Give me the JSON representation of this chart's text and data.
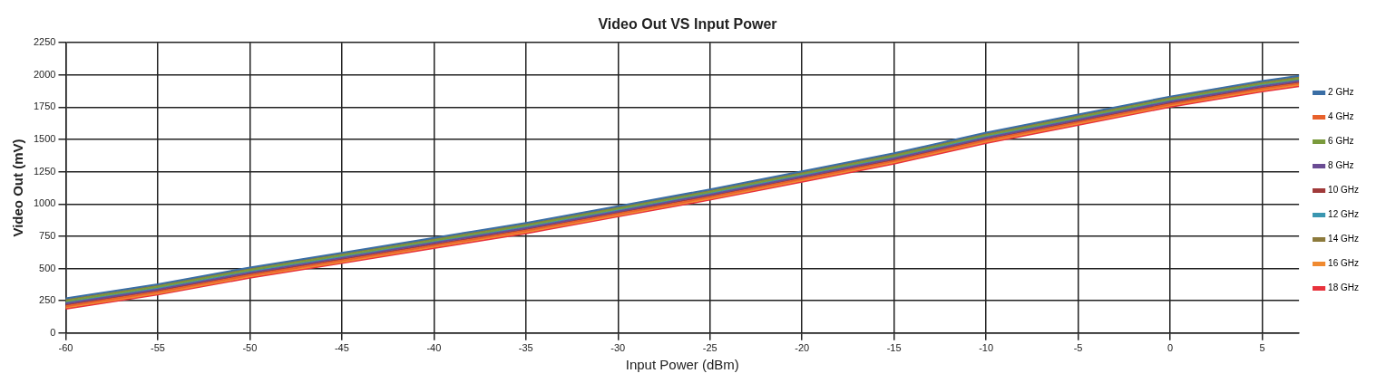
{
  "chart_data": {
    "type": "line",
    "title": "Video Out VS Input Power",
    "xlabel": "Input Power (dBm)",
    "ylabel": "Video Out (mV)",
    "x": [
      -60,
      -55,
      -50,
      -45,
      -40,
      -35,
      -30,
      -25,
      -20,
      -15,
      -10,
      -5,
      0,
      5,
      7
    ],
    "xlim": [
      -60,
      7
    ],
    "xticks": [
      -60,
      -55,
      -50,
      -45,
      -40,
      -35,
      -30,
      -25,
      -20,
      -15,
      -10,
      -5,
      0,
      5
    ],
    "ylim": [
      0,
      2250
    ],
    "yticks": [
      0,
      250,
      500,
      750,
      1000,
      1250,
      1500,
      1750,
      2000,
      2250
    ],
    "grid": true,
    "legend": "right",
    "marker": "none",
    "line_style": "solid",
    "series": [
      {
        "name": "2 GHz",
        "color": "#3a6ea5",
        "values": [
          268,
          378,
          508,
          622,
          738,
          853,
          983,
          1113,
          1253,
          1393,
          1553,
          1693,
          1833,
          1953,
          1993
        ]
      },
      {
        "name": "4 GHz",
        "color": "#e8612c",
        "values": [
          208,
          318,
          448,
          562,
          678,
          793,
          923,
          1053,
          1193,
          1333,
          1493,
          1633,
          1773,
          1893,
          1933
        ]
      },
      {
        "name": "6 GHz",
        "color": "#7a9a3c",
        "values": [
          248,
          358,
          488,
          602,
          718,
          833,
          963,
          1093,
          1233,
          1373,
          1533,
          1673,
          1813,
          1933,
          1973
        ]
      },
      {
        "name": "8 GHz",
        "color": "#6a4c93",
        "values": [
          228,
          338,
          468,
          582,
          698,
          813,
          943,
          1073,
          1213,
          1353,
          1513,
          1653,
          1793,
          1913,
          1953
        ]
      },
      {
        "name": "10 GHz",
        "color": "#a03a3a",
        "values": [
          218,
          328,
          458,
          572,
          688,
          803,
          933,
          1063,
          1203,
          1343,
          1503,
          1643,
          1783,
          1903,
          1943
        ]
      },
      {
        "name": "12 GHz",
        "color": "#3a96b0",
        "values": [
          238,
          348,
          478,
          592,
          708,
          823,
          953,
          1083,
          1223,
          1363,
          1523,
          1663,
          1803,
          1923,
          1963
        ]
      },
      {
        "name": "14 GHz",
        "color": "#8c7a3c",
        "values": [
          258,
          368,
          498,
          612,
          728,
          843,
          973,
          1103,
          1243,
          1383,
          1543,
          1683,
          1823,
          1943,
          1983
        ]
      },
      {
        "name": "16 GHz",
        "color": "#f08a30",
        "values": [
          198,
          308,
          438,
          552,
          668,
          783,
          913,
          1043,
          1183,
          1323,
          1483,
          1623,
          1763,
          1883,
          1923
        ]
      },
      {
        "name": "18 GHz",
        "color": "#e8323c",
        "values": [
          188,
          298,
          428,
          542,
          658,
          773,
          903,
          1033,
          1173,
          1313,
          1473,
          1613,
          1753,
          1873,
          1913
        ]
      }
    ]
  }
}
